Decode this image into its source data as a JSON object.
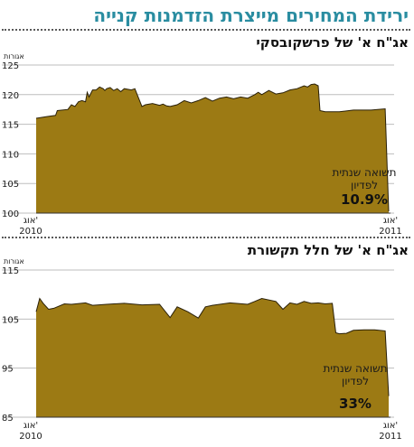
{
  "headline": "ירידת המחירים מייצרת הזדמנות קנייה",
  "colors": {
    "headline": "#2a8da1",
    "area_fill": "#9c7a14",
    "area_line": "#2a2008",
    "text": "#1a1a1a"
  },
  "chart_data": [
    {
      "type": "area",
      "title": "אג\"ח א' של פרשקובסקי",
      "yunit": "אגורות",
      "ylim": [
        100,
        125
      ],
      "yticks": [
        100,
        105,
        110,
        115,
        120,
        125
      ],
      "grid": true,
      "x_labels": {
        "left": [
          "אוג'",
          "2010"
        ],
        "right": [
          "אוג'",
          "2011"
        ]
      },
      "annotation": {
        "lines": [
          "תשואה שנתית",
          "לפדיון"
        ],
        "value": "10.9%"
      },
      "series": [
        {
          "x": [
            0,
            0.03,
            0.055,
            0.06,
            0.09,
            0.1,
            0.11,
            0.12,
            0.13,
            0.14,
            0.145,
            0.15,
            0.16,
            0.17,
            0.18,
            0.19,
            0.195,
            0.2,
            0.21,
            0.22,
            0.23,
            0.24,
            0.25,
            0.26,
            0.27,
            0.28,
            0.3,
            0.31,
            0.33,
            0.35,
            0.36,
            0.37,
            0.38,
            0.4,
            0.42,
            0.44,
            0.46,
            0.48,
            0.5,
            0.52,
            0.54,
            0.56,
            0.58,
            0.6,
            0.62,
            0.63,
            0.64,
            0.66,
            0.68,
            0.7,
            0.72,
            0.74,
            0.76,
            0.77,
            0.78,
            0.79,
            0.8,
            0.805,
            0.82,
            0.86,
            0.9,
            0.95,
            0.99,
            1.0
          ],
          "values": [
            116,
            116.3,
            116.5,
            117.3,
            117.5,
            118.3,
            118.0,
            118.8,
            119.0,
            118.8,
            120.4,
            119.6,
            120.8,
            120.8,
            121.3,
            121.0,
            120.7,
            121.0,
            121.2,
            120.7,
            121.0,
            120.5,
            121.0,
            120.9,
            120.8,
            121.0,
            118.0,
            118.3,
            118.5,
            118.2,
            118.4,
            118.1,
            118.0,
            118.3,
            119.0,
            118.6,
            119.0,
            119.5,
            118.9,
            119.4,
            119.6,
            119.3,
            119.6,
            119.4,
            120.0,
            120.4,
            120.0,
            120.7,
            120.1,
            120.3,
            120.8,
            121.0,
            121.5,
            121.3,
            121.7,
            121.8,
            121.5,
            117.3,
            117.1,
            117.1,
            117.4,
            117.4,
            117.6,
            100.3
          ]
        }
      ]
    },
    {
      "type": "area",
      "title": "אג\"ח א' של חלל תקשורת",
      "yunit": "אגורות",
      "ylim": [
        85,
        115
      ],
      "yticks": [
        85,
        95,
        105,
        115
      ],
      "grid": true,
      "x_labels": {
        "left": [
          "אוג'",
          "2010"
        ],
        "right": [
          "אוג'",
          "2011"
        ]
      },
      "annotation": {
        "lines": [
          "תשואה שנתית",
          "לפדיון"
        ],
        "value": "33%"
      },
      "series": [
        {
          "x": [
            0,
            0.01,
            0.02,
            0.035,
            0.05,
            0.08,
            0.1,
            0.14,
            0.16,
            0.2,
            0.25,
            0.3,
            0.35,
            0.38,
            0.4,
            0.43,
            0.46,
            0.48,
            0.5,
            0.55,
            0.6,
            0.62,
            0.64,
            0.68,
            0.7,
            0.72,
            0.74,
            0.76,
            0.78,
            0.8,
            0.82,
            0.84,
            0.85,
            0.86,
            0.88,
            0.9,
            0.93,
            0.96,
            0.99,
            1.0
          ],
          "values": [
            106.5,
            109.2,
            108.2,
            107.0,
            107.2,
            108.1,
            108.0,
            108.3,
            107.8,
            108.0,
            108.2,
            107.9,
            108.0,
            105.3,
            107.5,
            106.5,
            105.2,
            107.5,
            107.8,
            108.3,
            108.0,
            108.6,
            109.2,
            108.6,
            107.0,
            108.3,
            108.0,
            108.6,
            108.2,
            108.3,
            108.1,
            108.2,
            102.2,
            102.0,
            102.1,
            102.7,
            102.8,
            102.8,
            102.6,
            89.3
          ]
        }
      ]
    }
  ]
}
